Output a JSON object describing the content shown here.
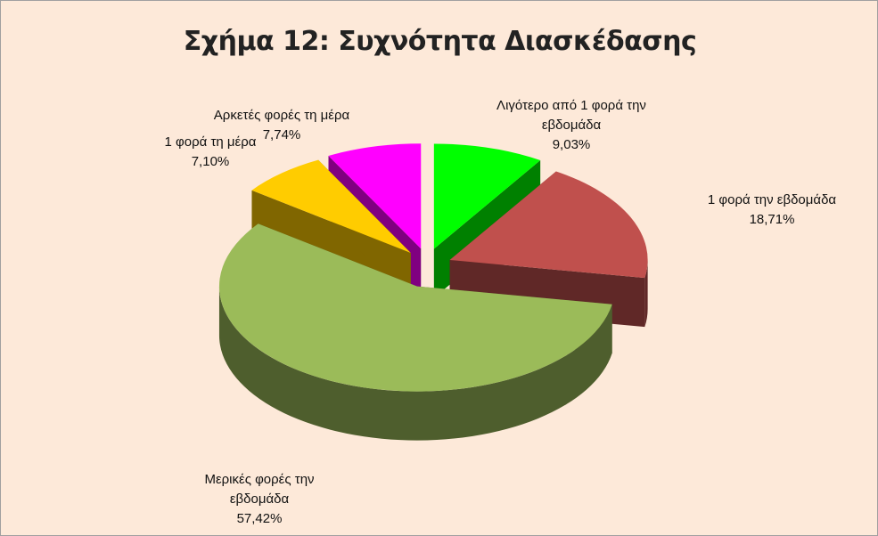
{
  "chart_data": {
    "type": "pie",
    "title": "Σχήμα 12: Συχνότητα Διασκέδασης",
    "categories": [
      "Λιγότερο από 1 φορά την εβδομάδα",
      "1 φορά την εβδομάδα",
      "Μερικές φορές την εβδομάδα",
      "1 φορά τη μέρα",
      "Αρκετές φορές τη μέρα"
    ],
    "values": [
      9.03,
      18.71,
      57.42,
      7.1,
      7.74
    ],
    "value_labels": [
      "9,03%",
      "18,71%",
      "57,42%",
      "7,10%",
      "7,74%"
    ],
    "colors": [
      "#00ff00",
      "#c0504d",
      "#9bbb59",
      "#ffcc00",
      "#ff00ff"
    ]
  }
}
